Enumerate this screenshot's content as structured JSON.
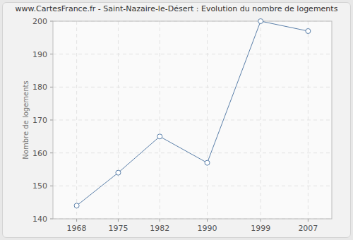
{
  "chart_data": {
    "type": "line",
    "title": "www.CartesFrance.fr - Saint-Nazaire-le-Désert : Evolution du nombre de logements",
    "y_label": "Nombre de logements",
    "x": [
      1968,
      1975,
      1982,
      1990,
      1999,
      2007
    ],
    "values": [
      144,
      154,
      165,
      157,
      200,
      197
    ],
    "color": "#5a7fa9",
    "marker": "circle",
    "xlim": [
      1964,
      2011
    ],
    "xticks": [
      1968,
      1975,
      1982,
      1990,
      1999,
      2007
    ],
    "ylim": [
      140,
      200
    ],
    "yticks": [
      140,
      150,
      160,
      170,
      180,
      190,
      200
    ],
    "grid": true
  }
}
